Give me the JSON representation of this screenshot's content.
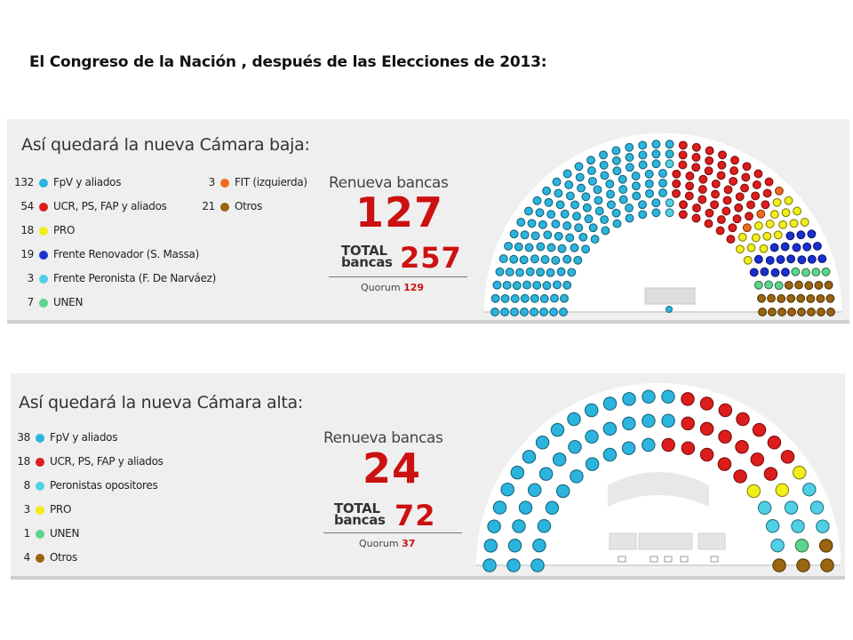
{
  "page_title": "El Congreso de la Nación , después de las Elecciones de 2013:",
  "colors": {
    "fpv": "#2bb5de",
    "ucr": "#dd1c1c",
    "pro": "#f2ee1a",
    "fr": "#1a2fd0",
    "fp": "#4fd0e6",
    "unen": "#5cd68c",
    "fit": "#f26b1d",
    "otros": "#9a6410"
  },
  "chart_data": [
    {
      "type": "parliament",
      "title": "Así quedará la nueva Cámara baja:",
      "renueva_label": "Renueva bancas",
      "renueva_value": "127",
      "total_label_1": "TOTAL",
      "total_label_2": "bancas",
      "total_value": "257",
      "quorum_label": "Quorum",
      "quorum_value": "129",
      "legend": [
        {
          "count": "132",
          "name": "FpV y aliados",
          "color": "#2bb5de"
        },
        {
          "count": "54",
          "name": "UCR, PS, FAP y aliados",
          "color": "#dd1c1c"
        },
        {
          "count": "18",
          "name": "PRO",
          "color": "#f2ee1a"
        },
        {
          "count": "19",
          "name": "Frente Renovador (S. Massa)",
          "color": "#1a2fd0"
        },
        {
          "count": "3",
          "name": "Frente Peronista (F. De Narváez)",
          "color": "#4fd0e6"
        },
        {
          "count": "7",
          "name": "UNEN",
          "color": "#5cd68c"
        },
        {
          "count": "3",
          "name": "FIT (izquierda)",
          "color": "#f26b1d"
        },
        {
          "count": "21",
          "name": "Otros",
          "color": "#9a6410"
        }
      ],
      "seats": [
        {
          "party": "FpV y aliados",
          "value": 132,
          "color": "#2bb5de"
        },
        {
          "party": "Frente Peronista (F. De Narváez)",
          "value": 3,
          "color": "#4fd0e6"
        },
        {
          "party": "UCR, PS, FAP y aliados",
          "value": 54,
          "color": "#dd1c1c"
        },
        {
          "party": "FIT (izquierda)",
          "value": 3,
          "color": "#f26b1d"
        },
        {
          "party": "PRO",
          "value": 18,
          "color": "#f2ee1a"
        },
        {
          "party": "Frente Renovador (S. Massa)",
          "value": 19,
          "color": "#1a2fd0"
        },
        {
          "party": "UNEN",
          "value": 7,
          "color": "#5cd68c"
        },
        {
          "party": "Otros",
          "value": 21,
          "color": "#9a6410"
        }
      ]
    },
    {
      "type": "parliament",
      "title": "Así quedará la nueva Cámara alta:",
      "renueva_label": "Renueva bancas",
      "renueva_value": "24",
      "total_label_1": "TOTAL",
      "total_label_2": "bancas",
      "total_value": "72",
      "quorum_label": "Quorum",
      "quorum_value": "37",
      "legend": [
        {
          "count": "38",
          "name": "FpV y aliados",
          "color": "#2bb5de"
        },
        {
          "count": "18",
          "name": "UCR, PS, FAP y aliados",
          "color": "#dd1c1c"
        },
        {
          "count": "8",
          "name": "Peronistas opositores",
          "color": "#4fd0e6"
        },
        {
          "count": "3",
          "name": "PRO",
          "color": "#f2ee1a"
        },
        {
          "count": "1",
          "name": "UNEN",
          "color": "#5cd68c"
        },
        {
          "count": "4",
          "name": "Otros",
          "color": "#9a6410"
        }
      ],
      "seats": [
        {
          "party": "FpV y aliados",
          "value": 38,
          "color": "#2bb5de"
        },
        {
          "party": "UCR, PS, FAP y aliados",
          "value": 18,
          "color": "#dd1c1c"
        },
        {
          "party": "PRO",
          "value": 3,
          "color": "#f2ee1a"
        },
        {
          "party": "Peronistas opositores",
          "value": 8,
          "color": "#4fd0e6"
        },
        {
          "party": "UNEN",
          "value": 1,
          "color": "#5cd68c"
        },
        {
          "party": "Otros",
          "value": 4,
          "color": "#9a6410"
        }
      ]
    }
  ]
}
